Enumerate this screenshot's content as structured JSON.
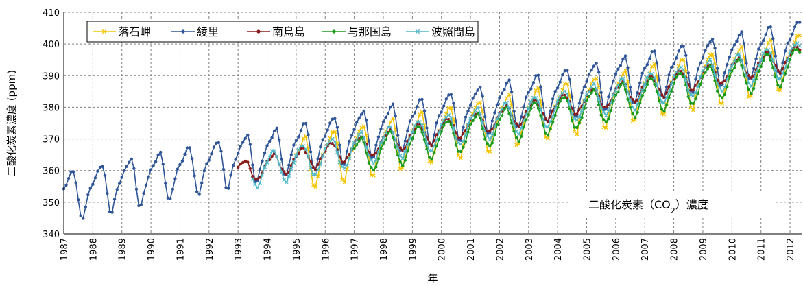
{
  "chart_data": {
    "type": "line",
    "title": "",
    "xlabel": "年",
    "ylabel": "二酸化炭素濃度 (ppm)",
    "ylim": [
      340,
      410
    ],
    "xlim": [
      1987,
      2012.4
    ],
    "yticks": [
      340,
      350,
      360,
      370,
      380,
      390,
      400,
      410
    ],
    "xticks": [
      "1987",
      "1988",
      "1989",
      "1990",
      "1991",
      "1992",
      "1993",
      "1994",
      "1995",
      "1996",
      "1997",
      "1998",
      "1999",
      "2000",
      "2001",
      "2002",
      "2003",
      "2004",
      "2005",
      "2006",
      "2007",
      "2008",
      "2009",
      "2010",
      "2011",
      "2012"
    ],
    "grid": true,
    "legend_position": "top-left",
    "annotation": {
      "prefix": "二酸化炭素（CO",
      "subscript": "2",
      "suffix": "）濃度"
    },
    "series": [
      {
        "name": "落石岬",
        "color": "#f5c400",
        "marker": "x",
        "start_year": 1995,
        "end_year": 2012,
        "mean_start": 361.7,
        "growth_per_year": 1.9,
        "amplitude": 8.2,
        "annual_cycle": "high-latitude"
      },
      {
        "name": "綾里",
        "color": "#2f5597",
        "marker": "circle",
        "start_year": 1987,
        "end_year": 2012,
        "mean_start": 351.5,
        "growth_per_year": 1.9,
        "amplitude": 7.6,
        "annual_cycle": "high-latitude"
      },
      {
        "name": "南鳥島",
        "color": "#8b1a1a",
        "marker": "circle",
        "start_year": 1993,
        "end_year": 2012,
        "mean_start": 359.2,
        "growth_per_year": 1.9,
        "amplitude": 3.5,
        "annual_cycle": "subtropical"
      },
      {
        "name": "与那国島",
        "color": "#1a9a1a",
        "marker": "circle",
        "start_year": 1997,
        "end_year": 2012,
        "mean_start": 364.2,
        "growth_per_year": 1.9,
        "amplitude": 5.5,
        "annual_cycle": "subtropical"
      },
      {
        "name": "波照間島",
        "color": "#4fb8c9",
        "marker": "x",
        "start_year": 1993.5,
        "end_year": 2012,
        "mean_start": 359.6,
        "growth_per_year": 1.9,
        "amplitude": 5.2,
        "annual_cycle": "subtropical"
      }
    ]
  }
}
